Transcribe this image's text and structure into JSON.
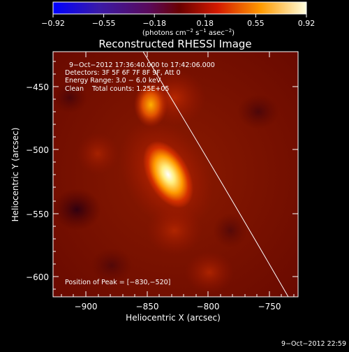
{
  "colorbar": {
    "ticks": [
      "−0.92",
      "−0.55",
      "−0.18",
      "0.18",
      "0.55",
      "0.92"
    ],
    "unit_text": "(photons cm",
    "unit_exp1": "−2",
    "unit_mid": " s",
    "unit_exp2": "−1",
    "unit_mid2": " asec",
    "unit_exp3": "−2",
    "unit_end": ")"
  },
  "plot": {
    "title": "Reconstructed RHESSI Image",
    "info_lines": [
      "9−Oct−2012 17:36:40.000 to 17:42:06.000",
      "Detectors: 3F 5F 6F 7F 8F 9F, Att 0",
      "Energy Range: 3.0 − 6.0 keV",
      "Clean    Total counts: 1.25E+05"
    ],
    "peak_text": "Position of Peak = [−830,−520]",
    "xlabel": "Heliocentric X (arcsec)",
    "ylabel": "Heliocentric Y (arcsec)",
    "xticks": [
      "−900",
      "−850",
      "−800",
      "−750"
    ],
    "yticks": [
      "−450",
      "−500",
      "−550",
      "−600"
    ]
  },
  "footer": {
    "timestamp": "9−Oct−2012 22:59"
  }
}
